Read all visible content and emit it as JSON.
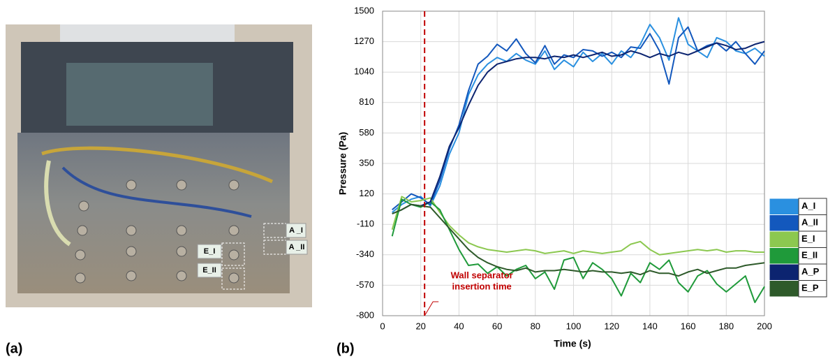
{
  "panels": {
    "a": {
      "label": "(a)",
      "photo_labels": [
        "A _I",
        "A _II",
        "E_I",
        "E_II"
      ]
    },
    "b": {
      "label": "(b)"
    }
  },
  "chart_data": {
    "type": "line",
    "x_label": "Time (s)",
    "y_label": "Pressure (Pa)",
    "xlim": [
      0,
      200
    ],
    "xticks": [
      0,
      20,
      40,
      60,
      80,
      100,
      120,
      140,
      160,
      180,
      200
    ],
    "ylim": [
      -800,
      1500
    ],
    "yticks": [
      -800,
      -570,
      -340,
      -110,
      120,
      350,
      580,
      810,
      1040,
      1270,
      1500
    ],
    "grid": true,
    "legend": "right",
    "annotation": {
      "x": 22,
      "color": "#c00000",
      "text": [
        "Wall separator",
        "insertion time"
      ]
    },
    "x": [
      5,
      10,
      15,
      20,
      25,
      30,
      35,
      40,
      45,
      50,
      55,
      60,
      65,
      70,
      75,
      80,
      85,
      90,
      95,
      100,
      105,
      110,
      115,
      120,
      125,
      130,
      135,
      140,
      145,
      150,
      155,
      160,
      165,
      170,
      175,
      180,
      185,
      190,
      195,
      200
    ],
    "series": [
      {
        "name": "A_I",
        "color": "#2a90e0",
        "values": [
          -20,
          40,
          80,
          100,
          30,
          180,
          420,
          580,
          870,
          1020,
          1100,
          1150,
          1120,
          1180,
          1130,
          1100,
          1200,
          1060,
          1130,
          1080,
          1190,
          1120,
          1180,
          1100,
          1200,
          1150,
          1250,
          1400,
          1300,
          1130,
          1450,
          1250,
          1200,
          1150,
          1300,
          1270,
          1200,
          1180,
          1220,
          1160
        ]
      },
      {
        "name": "A_II",
        "color": "#1358bd",
        "values": [
          0,
          60,
          120,
          90,
          40,
          220,
          460,
          640,
          900,
          1100,
          1160,
          1250,
          1200,
          1290,
          1180,
          1110,
          1240,
          1100,
          1170,
          1150,
          1210,
          1200,
          1160,
          1190,
          1150,
          1230,
          1220,
          1330,
          1200,
          950,
          1300,
          1380,
          1200,
          1240,
          1260,
          1200,
          1270,
          1180,
          1100,
          1200
        ]
      },
      {
        "name": "E_I",
        "color": "#8cc850",
        "values": [
          -150,
          100,
          60,
          70,
          90,
          -20,
          -120,
          -190,
          -250,
          -280,
          -300,
          -310,
          -320,
          -310,
          -300,
          -310,
          -330,
          -320,
          -310,
          -330,
          -310,
          -320,
          -330,
          -320,
          -310,
          -260,
          -240,
          -300,
          -340,
          -330,
          -320,
          -310,
          -300,
          -310,
          -300,
          -320,
          -310,
          -310,
          -320,
          -320
        ]
      },
      {
        "name": "E_II",
        "color": "#1f9a3a",
        "values": [
          -200,
          80,
          40,
          20,
          60,
          0,
          -150,
          -300,
          -420,
          -410,
          -480,
          -430,
          -500,
          -450,
          -420,
          -520,
          -470,
          -600,
          -380,
          -360,
          -520,
          -400,
          -450,
          -520,
          -650,
          -480,
          -550,
          -400,
          -450,
          -380,
          -550,
          -620,
          -500,
          -460,
          -560,
          -620,
          -560,
          -500,
          -700,
          -580
        ]
      },
      {
        "name": "A_P",
        "color": "#0c2470",
        "values": [
          -30,
          0,
          40,
          30,
          60,
          250,
          480,
          620,
          790,
          940,
          1040,
          1100,
          1120,
          1140,
          1150,
          1150,
          1140,
          1160,
          1150,
          1170,
          1150,
          1170,
          1190,
          1160,
          1170,
          1200,
          1180,
          1150,
          1180,
          1160,
          1190,
          1170,
          1200,
          1230,
          1260,
          1240,
          1210,
          1220,
          1250,
          1270
        ]
      },
      {
        "name": "E_P",
        "color": "#2e5a2a",
        "values": [
          -30,
          0,
          40,
          30,
          20,
          -60,
          -140,
          -220,
          -300,
          -360,
          -400,
          -430,
          -450,
          -460,
          -440,
          -470,
          -460,
          -460,
          -450,
          -460,
          -470,
          -460,
          -470,
          -470,
          -480,
          -470,
          -490,
          -460,
          -480,
          -480,
          -500,
          -470,
          -450,
          -480,
          -460,
          -440,
          -440,
          -420,
          -410,
          -400
        ]
      }
    ]
  }
}
